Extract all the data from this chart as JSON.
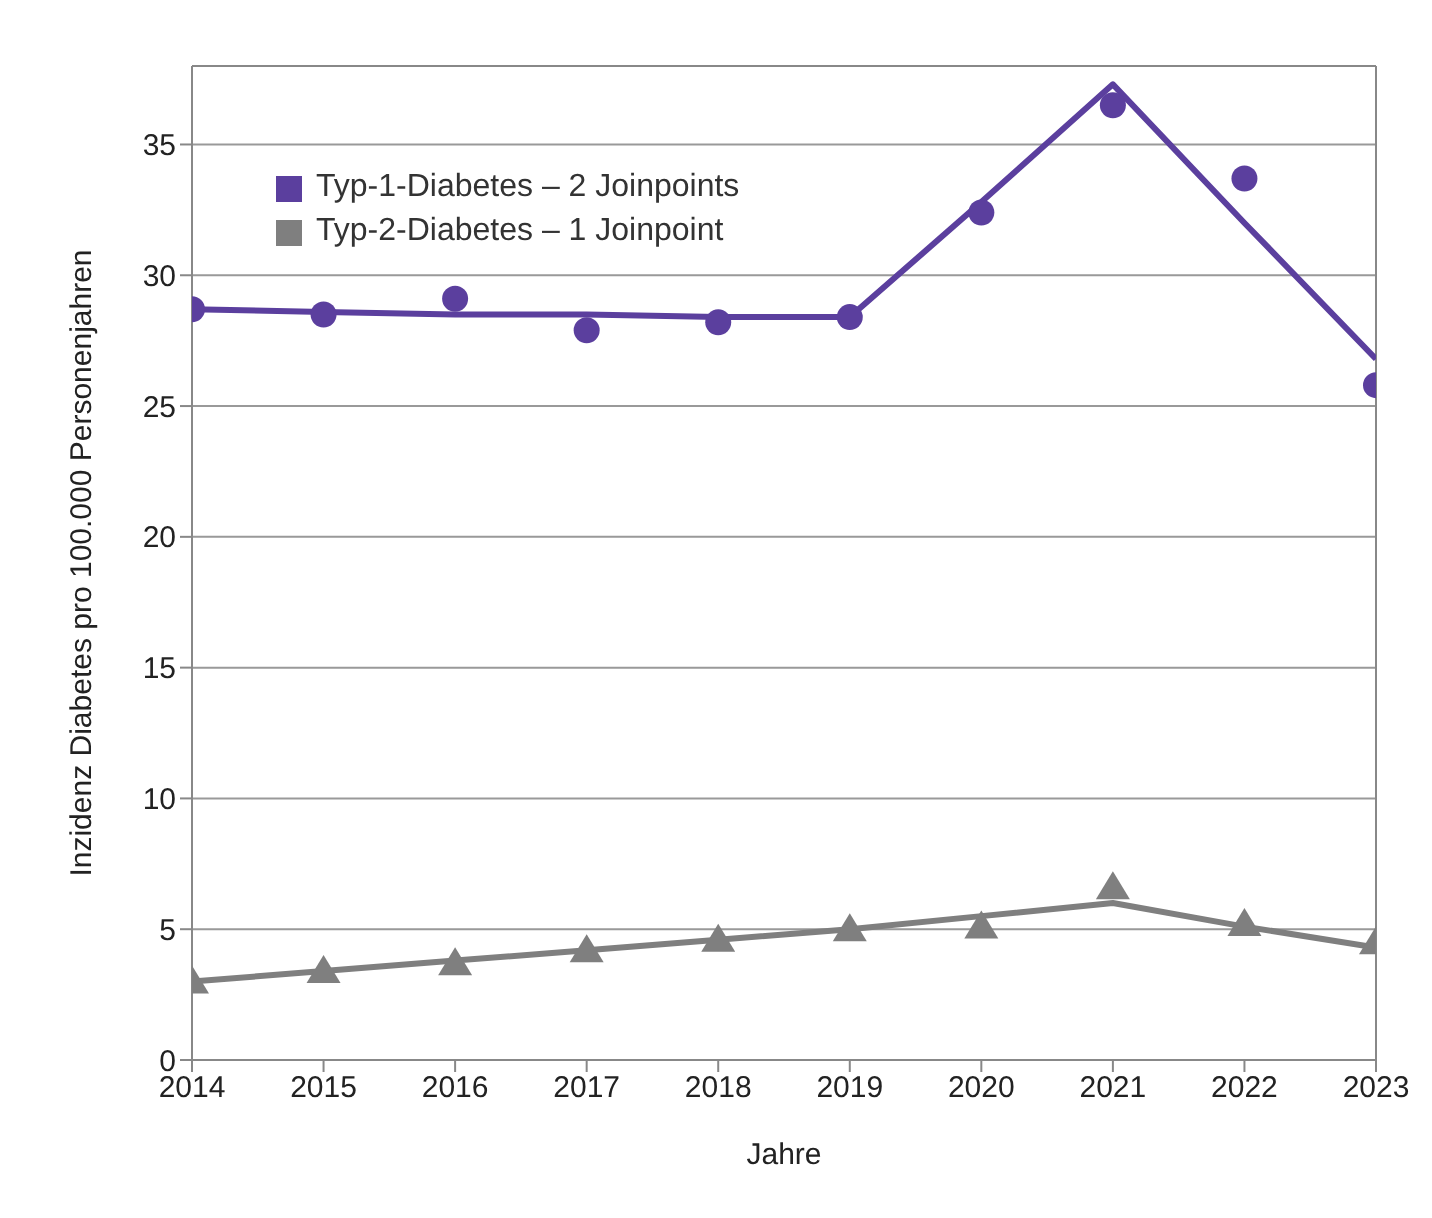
{
  "chart_data": {
    "type": "scatter",
    "xlabel": "Jahre",
    "ylabel": "Inzidenz Diabetes pro 100.000 Personenjahren",
    "x": [
      2014,
      2015,
      2016,
      2017,
      2018,
      2019,
      2020,
      2021,
      2022,
      2023
    ],
    "series": [
      {
        "name": "Typ-1-Diabetes – 2 Joinpoints",
        "marker": "circle",
        "color": "#5b3f9e",
        "values": [
          28.7,
          28.5,
          29.1,
          27.9,
          28.2,
          28.4,
          32.4,
          36.5,
          33.7,
          25.8
        ]
      },
      {
        "name": "Typ-2-Diabetes – 1 Joinpoint",
        "marker": "triangle",
        "color": "#7f7f7f",
        "values": [
          3.0,
          3.4,
          3.7,
          4.2,
          4.6,
          5.0,
          5.1,
          6.6,
          5.2,
          4.5
        ]
      },
      {
        "type": "line",
        "marker": "none",
        "color": "#5b3f9e",
        "values": [
          28.7,
          28.6,
          28.5,
          28.5,
          28.4,
          28.4,
          32.8,
          37.3,
          32.0,
          26.8
        ]
      },
      {
        "type": "line",
        "marker": "none",
        "color": "#7f7f7f",
        "values": [
          3.0,
          3.4,
          3.8,
          4.2,
          4.6,
          5.0,
          5.5,
          6.0,
          5.1,
          4.3
        ]
      }
    ],
    "xlim": [
      2014,
      2023
    ],
    "xticks": [
      2014,
      2015,
      2016,
      2017,
      2018,
      2019,
      2020,
      2021,
      2022,
      2023
    ],
    "ylim": [
      0,
      38
    ],
    "yticks": [
      0,
      5,
      10,
      15,
      20,
      25,
      30,
      35
    ],
    "grid": "y",
    "legend": "top left"
  }
}
